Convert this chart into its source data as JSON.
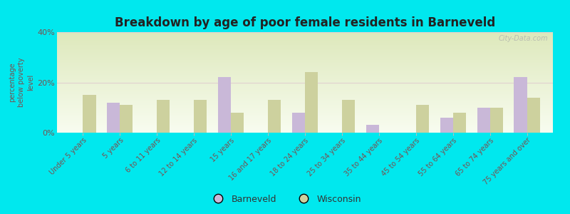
{
  "title": "Breakdown by age of poor female residents in Barneveld",
  "ylabel": "percentage\nbelow poverty\nlevel",
  "categories": [
    "Under 5 years",
    "5 years",
    "6 to 11 years",
    "12 to 14 years",
    "15 years",
    "16 and 17 years",
    "18 to 24 years",
    "25 to 34 years",
    "35 to 44 years",
    "45 to 54 years",
    "55 to 64 years",
    "65 to 74 years",
    "75 years and over"
  ],
  "barneveld": [
    0,
    12,
    0,
    0,
    22,
    0,
    8,
    0,
    3,
    0,
    6,
    10,
    22
  ],
  "wisconsin": [
    15,
    11,
    13,
    13,
    8,
    13,
    24,
    13,
    0,
    11,
    8,
    10,
    14
  ],
  "barneveld_color": "#c9b8d8",
  "wisconsin_color": "#cdd19e",
  "bg_color_top": "#dde8bb",
  "bg_color_bottom": "#f5faf0",
  "outer_bg": "#00e8ee",
  "title_color": "#222222",
  "axis_label_color": "#7a5050",
  "grid_color": "#e0d0d0",
  "ylim": [
    0,
    40
  ],
  "yticks": [
    0,
    20,
    40
  ],
  "ytick_labels": [
    "0%",
    "20%",
    "40%"
  ],
  "bar_width": 0.35,
  "title_fontsize": 12,
  "label_fontsize": 7,
  "tick_fontsize": 8,
  "legend_fontsize": 9,
  "legend_text_color": "#333333"
}
